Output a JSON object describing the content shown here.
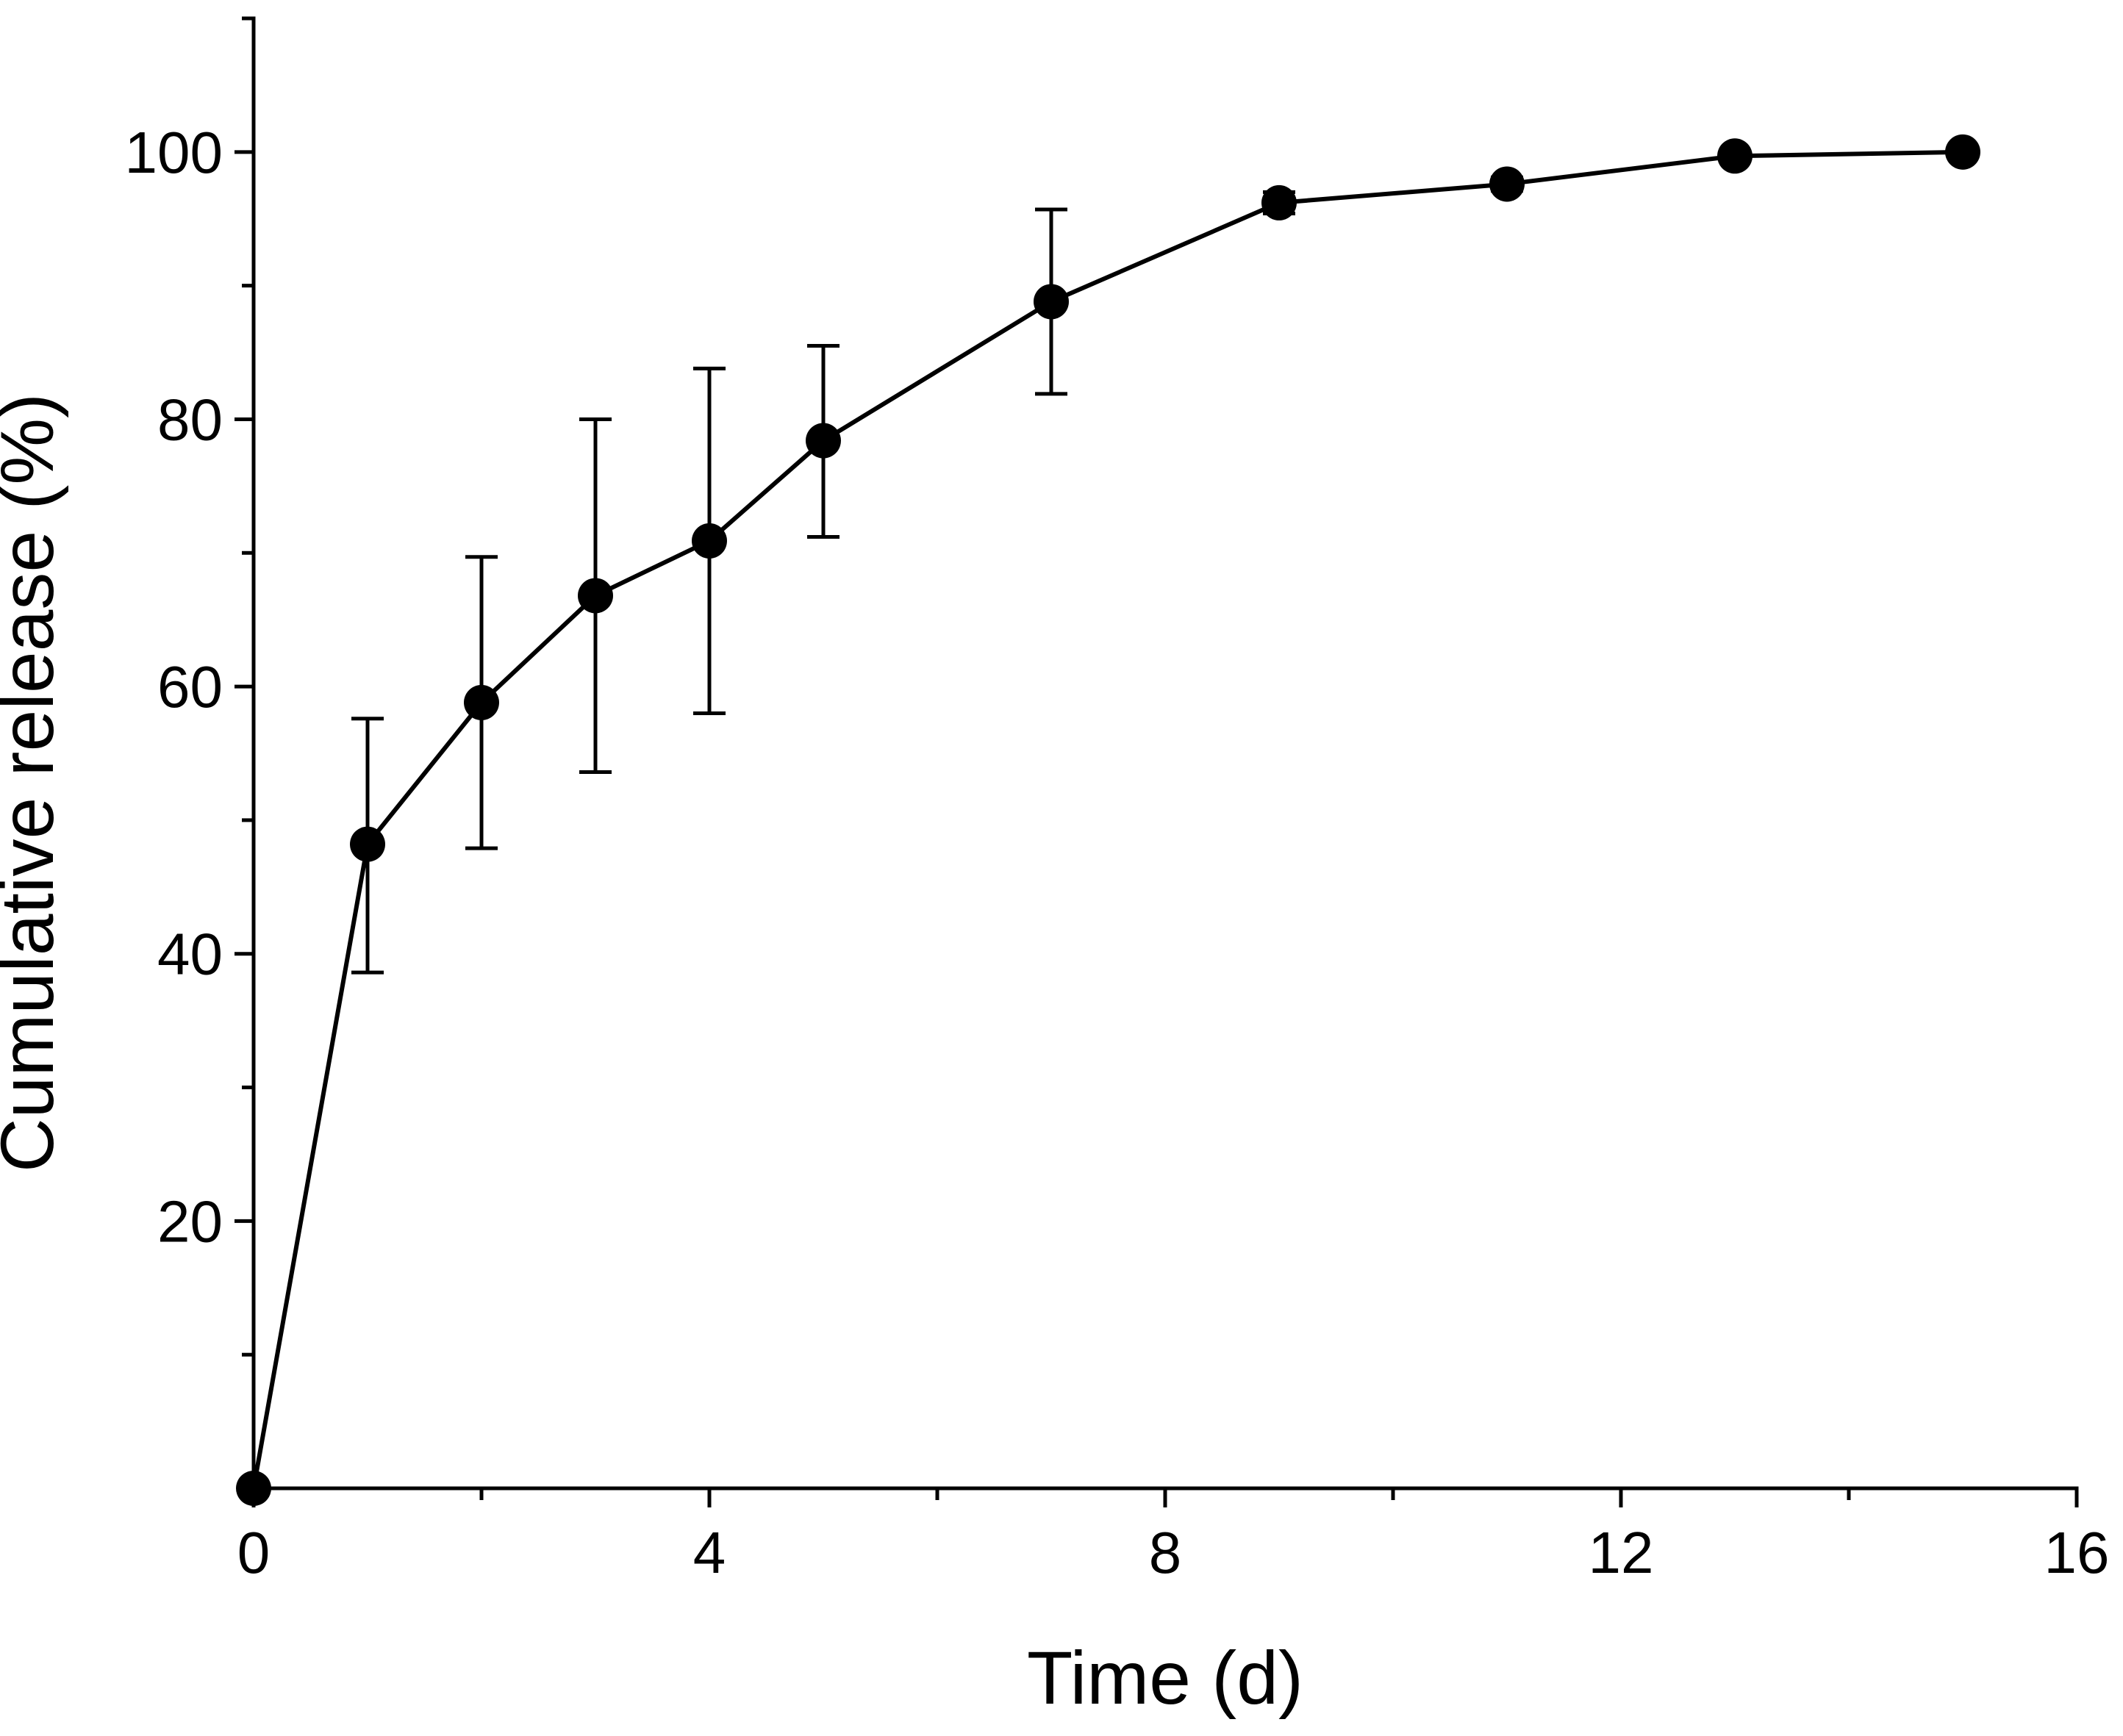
{
  "colors": {
    "background": "#ffffff",
    "line": "#000000",
    "marker": "#000000"
  },
  "chart_data": {
    "type": "line",
    "title": "",
    "xlabel": "Time (d)",
    "ylabel": "Cumulative release (%)",
    "xlim": [
      0,
      16
    ],
    "ylim": [
      0,
      110
    ],
    "x_ticks": [
      0,
      4,
      8,
      12,
      16
    ],
    "x_tick_labels": [
      "0",
      "4",
      "8",
      "12",
      "16"
    ],
    "x_minor_ticks": [
      2,
      6,
      10,
      14
    ],
    "y_ticks": [
      20,
      40,
      60,
      80,
      100
    ],
    "y_tick_labels": [
      "20",
      "40",
      "60",
      "80",
      "100"
    ],
    "y_minor_ticks": [
      0,
      10,
      30,
      50,
      70,
      90,
      110
    ],
    "grid": false,
    "legend": "none",
    "series": [
      {
        "name": "Cumulative release",
        "marker": "circle",
        "x": [
          0,
          1,
          2,
          3,
          4,
          5,
          7,
          9,
          11,
          13,
          15
        ],
        "y": [
          0,
          48.2,
          58.8,
          66.8,
          70.9,
          78.4,
          88.8,
          96.2,
          97.6,
          99.7,
          100
        ],
        "err_upper": [
          0,
          57.6,
          69.7,
          80.0,
          83.8,
          85.5,
          95.7,
          97.0,
          98.1,
          100.0,
          100.3
        ],
        "err_lower": [
          0,
          38.6,
          47.9,
          53.6,
          58.0,
          71.2,
          81.9,
          95.4,
          97.1,
          99.3,
          99.7
        ]
      }
    ]
  }
}
